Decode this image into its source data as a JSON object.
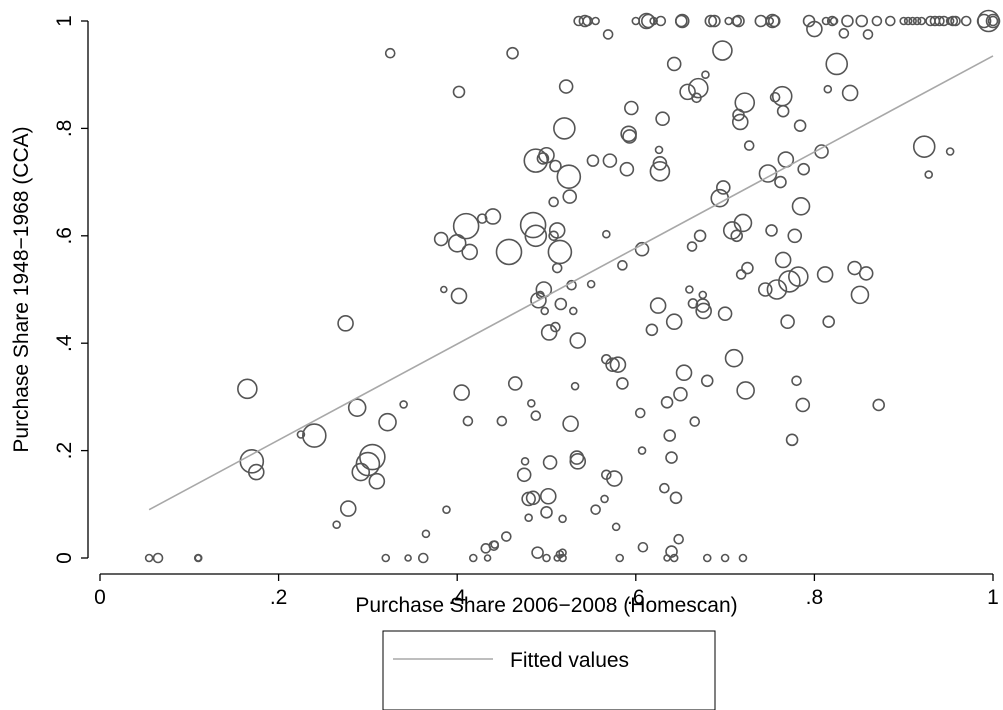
{
  "chart_data": {
    "type": "scatter",
    "xlabel": "Purchase Share 2006−2008 (Homescan)",
    "ylabel": "Purchase Share 1948−1968 (CCA)",
    "xlim": [
      0,
      1
    ],
    "ylim": [
      0,
      1
    ],
    "xticks": [
      0,
      0.2,
      0.4,
      0.6,
      0.8,
      1
    ],
    "xtick_labels": [
      "0",
      ".2",
      ".4",
      ".6",
      ".8",
      "1"
    ],
    "yticks": [
      0,
      0.2,
      0.4,
      0.6,
      0.8,
      1
    ],
    "ytick_labels": [
      "0",
      ".2",
      ".4",
      ".6",
      ".8",
      "1"
    ],
    "grid": false,
    "marker_color": "#555555",
    "fit_color": "#a8a8a8",
    "legend": {
      "placement": "bottom-center",
      "entries": [
        "Fitted values"
      ]
    },
    "fitted_line": {
      "x": [
        0.055,
        1.0
      ],
      "y": [
        0.09,
        0.935
      ]
    },
    "series": [
      {
        "marker": "hollow-circle",
        "note_weight": "circle area proportional to weight",
        "points": [
          [
            0.055,
            0,
            2
          ],
          [
            0.065,
            0,
            3
          ],
          [
            0.11,
            0,
            2
          ],
          [
            0.11,
            0,
            1.5
          ],
          [
            0.165,
            0.315,
            8
          ],
          [
            0.17,
            0.18,
            10
          ],
          [
            0.175,
            0.16,
            6
          ],
          [
            0.225,
            0.23,
            2
          ],
          [
            0.24,
            0.228,
            10
          ],
          [
            0.265,
            0.062,
            2
          ],
          [
            0.275,
            0.437,
            6
          ],
          [
            0.278,
            0.092,
            6
          ],
          [
            0.288,
            0.28,
            7
          ],
          [
            0.292,
            0.16,
            7
          ],
          [
            0.3,
            0.175,
            10
          ],
          [
            0.305,
            0.188,
            11
          ],
          [
            0.31,
            0.143,
            6
          ],
          [
            0.32,
            0,
            2
          ],
          [
            0.322,
            0.253,
            7
          ],
          [
            0.325,
            0.94,
            3
          ],
          [
            0.34,
            0.286,
            2
          ],
          [
            0.345,
            0,
            1.5
          ],
          [
            0.362,
            0,
            3
          ],
          [
            0.365,
            0.045,
            2
          ],
          [
            0.382,
            0.594,
            5
          ],
          [
            0.385,
            0.5,
            1.5
          ],
          [
            0.388,
            0.09,
            2
          ],
          [
            0.4,
            0.586,
            7
          ],
          [
            0.402,
            0.868,
            4
          ],
          [
            0.402,
            0.488,
            6
          ],
          [
            0.405,
            0.308,
            6
          ],
          [
            0.41,
            0.618,
            11
          ],
          [
            0.412,
            0.255,
            3
          ],
          [
            0.414,
            0.57,
            6
          ],
          [
            0.418,
            0,
            2
          ],
          [
            0.428,
            0.632,
            3
          ],
          [
            0.432,
            0.018,
            3
          ],
          [
            0.434,
            0,
            1.5
          ],
          [
            0.44,
            0.636,
            6
          ],
          [
            0.441,
            0.023,
            3
          ],
          [
            0.442,
            0.025,
            2
          ],
          [
            0.45,
            0.255,
            3
          ],
          [
            0.455,
            0.04,
            3
          ],
          [
            0.458,
            0.57,
            11
          ],
          [
            0.462,
            0.94,
            4
          ],
          [
            0.465,
            0.325,
            5
          ],
          [
            0.475,
            0.155,
            5
          ],
          [
            0.476,
            0.18,
            2
          ],
          [
            0.48,
            0.11,
            5
          ],
          [
            0.48,
            0.075,
            2
          ],
          [
            0.483,
            0.288,
            2
          ],
          [
            0.485,
            0.112,
            5
          ],
          [
            0.485,
            0.62,
            11
          ],
          [
            0.488,
            0.6,
            9
          ],
          [
            0.488,
            0.74,
            10
          ],
          [
            0.488,
            0.265,
            3
          ],
          [
            0.49,
            0.01,
            4
          ],
          [
            0.491,
            0.48,
            6
          ],
          [
            0.493,
            0.49,
            2
          ],
          [
            0.496,
            0.744,
            4
          ],
          [
            0.497,
            0.5,
            6
          ],
          [
            0.498,
            0.46,
            2
          ],
          [
            0.5,
            0.75,
            6
          ],
          [
            0.5,
            0,
            2
          ],
          [
            0.5,
            0.085,
            4
          ],
          [
            0.502,
            0.115,
            6
          ],
          [
            0.503,
            0.42,
            6
          ],
          [
            0.504,
            0.178,
            5
          ],
          [
            0.508,
            0.6,
            3
          ],
          [
            0.508,
            0.663,
            3
          ],
          [
            0.51,
            0.73,
            4
          ],
          [
            0.51,
            0.43,
            3
          ],
          [
            0.512,
            0.54,
            3
          ],
          [
            0.512,
            0.61,
            6
          ],
          [
            0.512,
            0,
            1.5
          ],
          [
            0.515,
            0.007,
            2
          ],
          [
            0.515,
            0.57,
            10
          ],
          [
            0.516,
            0.473,
            4
          ],
          [
            0.518,
            0.01,
            2
          ],
          [
            0.518,
            0,
            2
          ],
          [
            0.518,
            0.073,
            2
          ],
          [
            0.52,
            0.8,
            9
          ],
          [
            0.522,
            0.878,
            5
          ],
          [
            0.525,
            0.71,
            10
          ],
          [
            0.526,
            0.673,
            5
          ],
          [
            0.527,
            0.25,
            6
          ],
          [
            0.528,
            0.508,
            3
          ],
          [
            0.53,
            0.46,
            2
          ],
          [
            0.532,
            0.32,
            2
          ],
          [
            0.534,
            0.187,
            5
          ],
          [
            0.535,
            0.18,
            6
          ],
          [
            0.535,
            0.405,
            6
          ],
          [
            0.536,
            1,
            3
          ],
          [
            0.543,
            1,
            4
          ],
          [
            0.546,
            1,
            3
          ],
          [
            0.55,
            0.51,
            2
          ],
          [
            0.552,
            0.74,
            4
          ],
          [
            0.555,
            1,
            2
          ],
          [
            0.555,
            0.09,
            3
          ],
          [
            0.565,
            0.11,
            2
          ],
          [
            0.567,
            0.155,
            3
          ],
          [
            0.567,
            0.603,
            2
          ],
          [
            0.567,
            0.37,
            3
          ],
          [
            0.569,
            0.975,
            3
          ],
          [
            0.571,
            0.74,
            5
          ],
          [
            0.574,
            0.36,
            5
          ],
          [
            0.576,
            0.148,
            6
          ],
          [
            0.578,
            0.058,
            2
          ],
          [
            0.58,
            0.36,
            6
          ],
          [
            0.582,
            0,
            2
          ],
          [
            0.585,
            0.545,
            3
          ],
          [
            0.585,
            0.325,
            4
          ],
          [
            0.59,
            0.724,
            5
          ],
          [
            0.592,
            0.79,
            6
          ],
          [
            0.593,
            0.785,
            5
          ],
          [
            0.595,
            0.838,
            5
          ],
          [
            0.6,
            1,
            2
          ],
          [
            0.605,
            0.27,
            3
          ],
          [
            0.607,
            0.575,
            5
          ],
          [
            0.607,
            0.2,
            2
          ],
          [
            0.608,
            0.02,
            3
          ],
          [
            0.612,
            1,
            6
          ],
          [
            0.614,
            1,
            5
          ],
          [
            0.618,
            0.425,
            4
          ],
          [
            0.62,
            1,
            2
          ],
          [
            0.625,
            0.47,
            6
          ],
          [
            0.626,
            0.76,
            2
          ],
          [
            0.627,
            0.735,
            5
          ],
          [
            0.627,
            0.72,
            8
          ],
          [
            0.628,
            1,
            3
          ],
          [
            0.63,
            0.818,
            5
          ],
          [
            0.632,
            0.13,
            3
          ],
          [
            0.635,
            0,
            1.5
          ],
          [
            0.635,
            0.29,
            4
          ],
          [
            0.638,
            0.228,
            4
          ],
          [
            0.64,
            0.187,
            4
          ],
          [
            0.64,
            0.012,
            4
          ],
          [
            0.643,
            0.92,
            5
          ],
          [
            0.643,
            0,
            2
          ],
          [
            0.643,
            0.44,
            6
          ],
          [
            0.645,
            0.112,
            4
          ],
          [
            0.648,
            0.035,
            3
          ],
          [
            0.65,
            0.305,
            5
          ],
          [
            0.651,
            1,
            4
          ],
          [
            0.652,
            1,
            5
          ],
          [
            0.654,
            0.345,
            6
          ],
          [
            0.658,
            0.868,
            6
          ],
          [
            0.66,
            0.5,
            2
          ],
          [
            0.663,
            0.58,
            3
          ],
          [
            0.664,
            0.474,
            3
          ],
          [
            0.666,
            0.254,
            3
          ],
          [
            0.668,
            0.857,
            3
          ],
          [
            0.67,
            0.875,
            8
          ],
          [
            0.672,
            0.6,
            4
          ],
          [
            0.675,
            0.49,
            2
          ],
          [
            0.675,
            0.47,
            5
          ],
          [
            0.676,
            0.46,
            6
          ],
          [
            0.678,
            0.9,
            2
          ],
          [
            0.68,
            0.33,
            4
          ],
          [
            0.68,
            0,
            2
          ],
          [
            0.684,
            1,
            4
          ],
          [
            0.688,
            1,
            4
          ],
          [
            0.694,
            0.67,
            7
          ],
          [
            0.697,
            0.945,
            8
          ],
          [
            0.698,
            0.69,
            5
          ],
          [
            0.7,
            0.455,
            5
          ],
          [
            0.7,
            0,
            2
          ],
          [
            0.704,
            1,
            2
          ],
          [
            0.708,
            0.61,
            7
          ],
          [
            0.71,
            0.372,
            7
          ],
          [
            0.713,
            1,
            3
          ],
          [
            0.713,
            0.6,
            4
          ],
          [
            0.715,
            1,
            4
          ],
          [
            0.715,
            0.825,
            4
          ],
          [
            0.717,
            0.812,
            6
          ],
          [
            0.718,
            0.528,
            3
          ],
          [
            0.72,
            0.624,
            7
          ],
          [
            0.72,
            0,
            2
          ],
          [
            0.722,
            0.848,
            8
          ],
          [
            0.723,
            0.312,
            7
          ],
          [
            0.725,
            0.54,
            4
          ],
          [
            0.727,
            0.768,
            3
          ],
          [
            0.74,
            1,
            4
          ],
          [
            0.745,
            0.5,
            5
          ],
          [
            0.748,
            0.716,
            7
          ],
          [
            0.75,
            1,
            2
          ],
          [
            0.752,
            0.61,
            4
          ],
          [
            0.753,
            1,
            5
          ],
          [
            0.755,
            1,
            4
          ],
          [
            0.756,
            0.858,
            3
          ],
          [
            0.758,
            0.5,
            8
          ],
          [
            0.762,
            0.7,
            4
          ],
          [
            0.764,
            0.86,
            8
          ],
          [
            0.765,
            0.555,
            6
          ],
          [
            0.765,
            0.832,
            4
          ],
          [
            0.768,
            0.742,
            6
          ],
          [
            0.77,
            0.44,
            5
          ],
          [
            0.772,
            0.515,
            9
          ],
          [
            0.775,
            0.22,
            4
          ],
          [
            0.778,
            0.6,
            5
          ],
          [
            0.78,
            0.33,
            3
          ],
          [
            0.782,
            0.524,
            8
          ],
          [
            0.784,
            0.805,
            4
          ],
          [
            0.785,
            0.655,
            7
          ],
          [
            0.787,
            0.285,
            5
          ],
          [
            0.788,
            0.724,
            4
          ],
          [
            0.794,
            1,
            4
          ],
          [
            0.8,
            0.985,
            6
          ],
          [
            0.808,
            0.757,
            5
          ],
          [
            0.812,
            0.528,
            6
          ],
          [
            0.813,
            1,
            2
          ],
          [
            0.815,
            0.873,
            2
          ],
          [
            0.816,
            0.44,
            4
          ],
          [
            0.82,
            1,
            3
          ],
          [
            0.822,
            1,
            2
          ],
          [
            0.825,
            0.92,
            9
          ],
          [
            0.833,
            0.977,
            3
          ],
          [
            0.837,
            1,
            4
          ],
          [
            0.84,
            0.866,
            6
          ],
          [
            0.845,
            0.54,
            5
          ],
          [
            0.851,
            0.49,
            7
          ],
          [
            0.853,
            1,
            4
          ],
          [
            0.858,
            0.53,
            5
          ],
          [
            0.86,
            0.975,
            3
          ],
          [
            0.87,
            1,
            3
          ],
          [
            0.872,
            0.285,
            4
          ],
          [
            0.885,
            1,
            3
          ],
          [
            0.9,
            1,
            2
          ],
          [
            0.905,
            1,
            2
          ],
          [
            0.91,
            1,
            2
          ],
          [
            0.915,
            1,
            2
          ],
          [
            0.92,
            1,
            2
          ],
          [
            0.923,
            0.766,
            9
          ],
          [
            0.928,
            0.714,
            2
          ],
          [
            0.93,
            1,
            3
          ],
          [
            0.935,
            1,
            3
          ],
          [
            0.94,
            1,
            3
          ],
          [
            0.945,
            1,
            3
          ],
          [
            0.952,
            1,
            2
          ],
          [
            0.952,
            0.757,
            2
          ],
          [
            0.955,
            1,
            3
          ],
          [
            0.958,
            1,
            3
          ],
          [
            0.97,
            1,
            3
          ],
          [
            0.99,
            1,
            5
          ],
          [
            0.995,
            1,
            9
          ],
          [
            1.0,
            1,
            5
          ],
          [
            1.0,
            1,
            3
          ]
        ]
      }
    ]
  }
}
